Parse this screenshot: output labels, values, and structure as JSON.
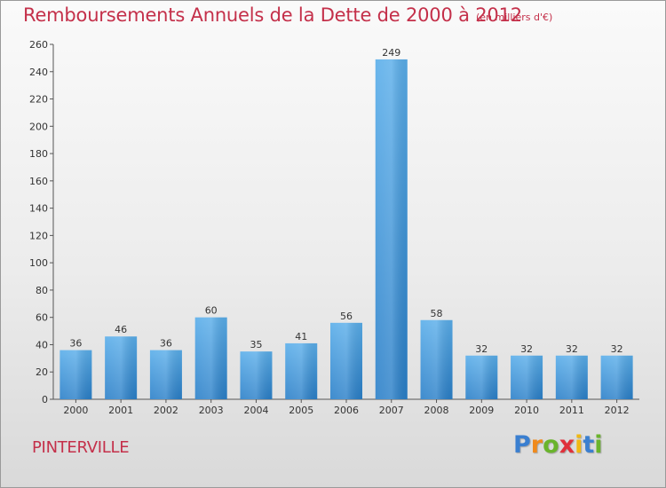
{
  "header": {
    "title": "Remboursements Annuels de la Dette de 2000 à 2012",
    "units": "(en milliers d'€)"
  },
  "footer": {
    "place": "PINTERVILLE",
    "logo_letters": [
      "P",
      "r",
      "o",
      "x",
      "i",
      "t",
      "i"
    ]
  },
  "colors": {
    "title": "#c4304a",
    "bar_light": "#5aaeea",
    "bar_dark": "#2a7fc8",
    "logo": [
      "#3a7fd0",
      "#f08a1c",
      "#6ab42c",
      "#e0303a",
      "#f0b814",
      "#3a7fd0",
      "#6ab42c"
    ]
  },
  "chart_data": {
    "type": "bar",
    "title": "Remboursements Annuels de la Dette de 2000 à 2012",
    "categories": [
      "2000",
      "2001",
      "2002",
      "2003",
      "2004",
      "2005",
      "2006",
      "2007",
      "2008",
      "2009",
      "2010",
      "2011",
      "2012"
    ],
    "values": [
      36,
      46,
      36,
      60,
      35,
      41,
      56,
      249,
      58,
      32,
      32,
      32,
      32
    ],
    "ylim": [
      0,
      260
    ],
    "yticks": [
      0,
      20,
      40,
      60,
      80,
      100,
      120,
      140,
      160,
      180,
      200,
      220,
      240,
      260
    ],
    "grid": false,
    "data_labels": true
  }
}
